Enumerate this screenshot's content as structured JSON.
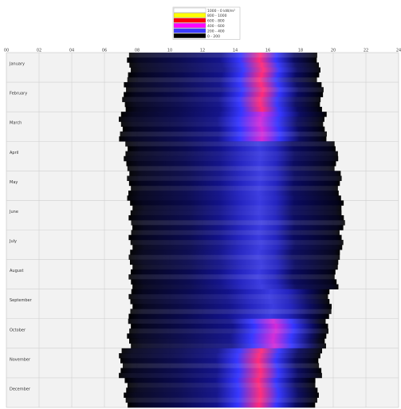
{
  "chart_data": {
    "type": "heatmap",
    "title": "",
    "xlabel": "",
    "ylabel": "",
    "x_tick_labels": [
      "00",
      "02",
      "04",
      "06",
      "08",
      "10",
      "12",
      "14",
      "16",
      "18",
      "20",
      "22",
      "24"
    ],
    "categories": [
      "January",
      "February",
      "March",
      "April",
      "May",
      "June",
      "July",
      "August",
      "September",
      "October",
      "November",
      "December"
    ],
    "grid": true,
    "background": "#f2f2f2",
    "legend": {
      "placement": "top-center",
      "entries": [
        {
          "color": "#ffffff",
          "label": "1000 - 0 kW/m²"
        },
        {
          "color": "#ffff00",
          "label": "800 - 1000"
        },
        {
          "color": "#ff0000",
          "label": "600 - 800"
        },
        {
          "color": "#ff00ff",
          "label": "400 - 600"
        },
        {
          "color": "#3c3cff",
          "label": "200 - 400"
        },
        {
          "color": "#000000",
          "label": "0 - 200"
        }
      ]
    },
    "month_data": [
      {
        "month": "January",
        "start": 7.5,
        "end": 19.1,
        "peak_hour": 15.6,
        "peak_width": 2.2,
        "peak_level": 0.62
      },
      {
        "month": "February",
        "start": 7.2,
        "end": 19.3,
        "peak_hour": 15.6,
        "peak_width": 2.3,
        "peak_level": 0.64
      },
      {
        "month": "March",
        "start": 7.0,
        "end": 19.5,
        "peak_hour": 15.6,
        "peak_width": 2.4,
        "peak_level": 0.45
      },
      {
        "month": "April",
        "start": 7.3,
        "end": 20.2,
        "peak_hour": 15.5,
        "peak_width": 2.2,
        "peak_level": 0.05
      },
      {
        "month": "May",
        "start": 7.5,
        "end": 20.4,
        "peak_hour": 15.5,
        "peak_width": 2.2,
        "peak_level": 0.03
      },
      {
        "month": "June",
        "start": 7.6,
        "end": 20.6,
        "peak_hour": 15.5,
        "peak_width": 2.2,
        "peak_level": 0.02
      },
      {
        "month": "July",
        "start": 7.6,
        "end": 20.5,
        "peak_hour": 15.5,
        "peak_width": 2.2,
        "peak_level": 0.03
      },
      {
        "month": "August",
        "start": 7.6,
        "end": 20.2,
        "peak_hour": 15.5,
        "peak_width": 2.2,
        "peak_level": 0.06
      },
      {
        "month": "September",
        "start": 7.6,
        "end": 19.8,
        "peak_hour": 16.2,
        "peak_width": 2.4,
        "peak_level": 0.16
      },
      {
        "month": "October",
        "start": 7.5,
        "end": 19.6,
        "peak_hour": 16.4,
        "peak_width": 2.4,
        "peak_level": 0.34
      },
      {
        "month": "November",
        "start": 7.0,
        "end": 19.2,
        "peak_hour": 15.5,
        "peak_width": 2.4,
        "peak_level": 0.66
      },
      {
        "month": "December",
        "start": 7.3,
        "end": 19.0,
        "peak_hour": 15.5,
        "peak_width": 2.4,
        "peak_level": 0.7
      }
    ]
  }
}
